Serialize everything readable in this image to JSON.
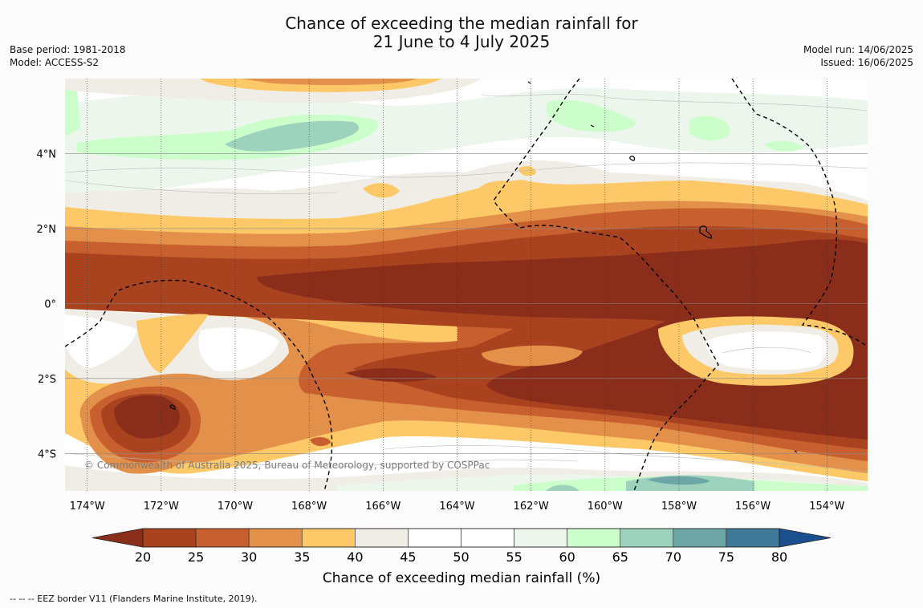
{
  "title": {
    "line1": "Chance of exceeding the median rainfall for",
    "line2": "21 June to 4 July 2025"
  },
  "meta_left": {
    "base_period": "Base period: 1981-2018",
    "model": "Model: ACCESS-S2"
  },
  "meta_right": {
    "model_run": "Model run: 14/06/2025",
    "issued": "Issued: 16/06/2025"
  },
  "map": {
    "lon_range": [
      -174.6,
      -152.9
    ],
    "lat_range": [
      -5.0,
      6.0
    ],
    "lon_ticks": [
      {
        "lon": -174,
        "label": "174°W"
      },
      {
        "lon": -172,
        "label": "172°W"
      },
      {
        "lon": -170,
        "label": "170°W"
      },
      {
        "lon": -168,
        "label": "168°W"
      },
      {
        "lon": -166,
        "label": "166°W"
      },
      {
        "lon": -164,
        "label": "164°W"
      },
      {
        "lon": -162,
        "label": "162°W"
      },
      {
        "lon": -160,
        "label": "160°W"
      },
      {
        "lon": -158,
        "label": "158°W"
      },
      {
        "lon": -156,
        "label": "156°W"
      },
      {
        "lon": -154,
        "label": "154°W"
      }
    ],
    "lat_ticks": [
      {
        "lat": 4,
        "label": "4°N"
      },
      {
        "lat": 2,
        "label": "2°N"
      },
      {
        "lat": 0,
        "label": "0°"
      },
      {
        "lat": -2,
        "label": "2°S"
      },
      {
        "lat": -4,
        "label": "4°S"
      }
    ],
    "copyright": "© Commonwealth of Australia 2025, Bureau of Meteorology, supported by COSPPac"
  },
  "colorbar": {
    "boundaries": [
      "20",
      "25",
      "30",
      "35",
      "40",
      "45",
      "50",
      "55",
      "60",
      "65",
      "70",
      "75",
      "80"
    ],
    "colors": {
      "below": "#8a2e1b",
      "20-25": "#a8421f",
      "25-30": "#c75f2f",
      "30-35": "#e3914a",
      "35-40": "#fdc868",
      "40-45": "#f0ede6",
      "45-50": "#ffffff",
      "50-55": "#ffffff",
      "55-60": "#edf6ec",
      "60-65": "#ccfecc",
      "65-70": "#9dd3bd",
      "70-75": "#6ea6a8",
      "75-80": "#3f7a9a",
      "above": "#19508d"
    },
    "label": "Chance of exceeding median rainfall (%)"
  },
  "footnote": "--  --  -- EEZ border V11 (Flanders Marine Institute, 2019)."
}
